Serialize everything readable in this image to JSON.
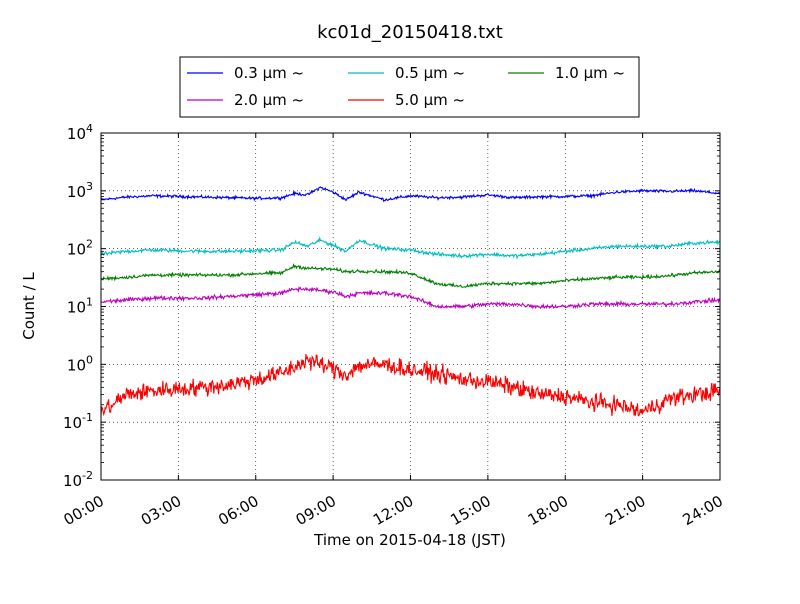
{
  "chart_data": {
    "type": "line",
    "title": "kc01d_20150418.txt",
    "xlabel": "Time on 2015-04-18 (JST)",
    "ylabel": "Count / L",
    "x_unit": "hour",
    "xlim": [
      0,
      24
    ],
    "ylim": [
      0.01,
      10000
    ],
    "yscale": "log",
    "grid": true,
    "legend_position": "top-center",
    "legend_columns": 3,
    "x_ticks": [
      {
        "value": 0,
        "label": "00:00"
      },
      {
        "value": 3,
        "label": "03:00"
      },
      {
        "value": 6,
        "label": "06:00"
      },
      {
        "value": 9,
        "label": "09:00"
      },
      {
        "value": 12,
        "label": "12:00"
      },
      {
        "value": 15,
        "label": "15:00"
      },
      {
        "value": 18,
        "label": "18:00"
      },
      {
        "value": 21,
        "label": "21:00"
      },
      {
        "value": 24,
        "label": "24:00"
      }
    ],
    "y_ticks": [
      {
        "value": 0.01,
        "base": "10",
        "exp": "-2"
      },
      {
        "value": 0.1,
        "base": "10",
        "exp": "-1"
      },
      {
        "value": 1,
        "base": "10",
        "exp": "0"
      },
      {
        "value": 10,
        "base": "10",
        "exp": "1"
      },
      {
        "value": 100,
        "base": "10",
        "exp": "2"
      },
      {
        "value": 1000,
        "base": "10",
        "exp": "3"
      },
      {
        "value": 10000,
        "base": "10",
        "exp": "4"
      }
    ],
    "x": [
      0,
      1,
      2,
      3,
      4,
      5,
      6,
      7,
      7.5,
      8,
      8.5,
      9,
      9.5,
      10,
      11,
      12,
      13,
      14,
      15,
      16,
      17,
      18,
      19,
      20,
      21,
      22,
      23,
      24
    ],
    "series": [
      {
        "name": "0.3 μm ~",
        "color": "#0000ff",
        "values": [
          700,
          780,
          820,
          800,
          780,
          760,
          740,
          760,
          900,
          850,
          1150,
          950,
          700,
          950,
          700,
          820,
          760,
          780,
          850,
          760,
          790,
          800,
          820,
          950,
          1000,
          980,
          1000,
          900
        ]
      },
      {
        "name": "0.5 μm ~",
        "color": "#00bfbf",
        "values": [
          80,
          90,
          95,
          92,
          90,
          90,
          92,
          95,
          130,
          110,
          140,
          115,
          90,
          140,
          100,
          95,
          80,
          75,
          80,
          75,
          80,
          90,
          100,
          110,
          110,
          110,
          125,
          130
        ]
      },
      {
        "name": "1.0 μm ~",
        "color": "#008000",
        "values": [
          30,
          32,
          35,
          35,
          35,
          35,
          37,
          38,
          50,
          46,
          45,
          44,
          40,
          41,
          40,
          38,
          25,
          22,
          25,
          25,
          25,
          28,
          30,
          32,
          32,
          34,
          38,
          40
        ]
      },
      {
        "name": "2.0 μm ~",
        "color": "#bf00bf",
        "values": [
          12,
          13,
          14,
          14,
          14,
          15,
          16,
          17,
          20,
          20,
          19,
          18,
          15,
          17,
          17,
          15,
          10,
          10,
          11,
          11,
          10,
          10,
          11,
          11,
          11,
          11,
          12,
          13
        ]
      },
      {
        "name": "5.0 μm ~",
        "color": "#ff0000",
        "values": [
          0.15,
          0.3,
          0.35,
          0.38,
          0.4,
          0.45,
          0.55,
          0.7,
          0.9,
          1.2,
          1.0,
          0.85,
          0.65,
          0.95,
          1.0,
          0.8,
          0.7,
          0.55,
          0.5,
          0.4,
          0.3,
          0.28,
          0.22,
          0.2,
          0.15,
          0.25,
          0.3,
          0.35
        ]
      }
    ]
  }
}
